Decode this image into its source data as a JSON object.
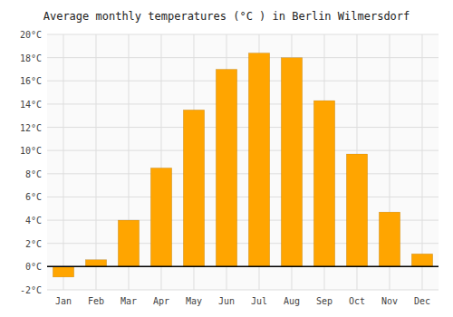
{
  "chart_data": {
    "type": "bar",
    "title": "Average monthly temperatures (°C ) in Berlin Wilmersdorf",
    "categories": [
      "Jan",
      "Feb",
      "Mar",
      "Apr",
      "May",
      "Jun",
      "Jul",
      "Aug",
      "Sep",
      "Oct",
      "Nov",
      "Dec"
    ],
    "values": [
      -0.9,
      0.6,
      4.0,
      8.5,
      13.5,
      17.0,
      18.4,
      18.0,
      14.3,
      9.7,
      4.7,
      1.1
    ],
    "color": "#FFA500",
    "ylim": [
      -2,
      20
    ],
    "yticks": [
      {
        "value": -2,
        "label": "-2°C"
      },
      {
        "value": 0,
        "label": "0°C"
      },
      {
        "value": 2,
        "label": "2°C"
      },
      {
        "value": 4,
        "label": "4°C"
      },
      {
        "value": 6,
        "label": "6°C"
      },
      {
        "value": 8,
        "label": "8°C"
      },
      {
        "value": 10,
        "label": "10°C"
      },
      {
        "value": 12,
        "label": "12°C"
      },
      {
        "value": 14,
        "label": "14°C"
      },
      {
        "value": 16,
        "label": "16°C"
      },
      {
        "value": 18,
        "label": "18°C"
      },
      {
        "value": 20,
        "label": "20°C"
      }
    ],
    "grid": true
  }
}
